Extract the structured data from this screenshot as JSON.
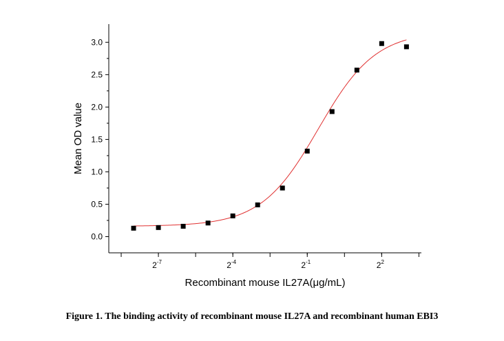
{
  "caption": "Figure 1. The binding activity of recombinant mouse IL27A and recombinant human EBI3",
  "chart_data": {
    "type": "scatter",
    "xlabel": "Recombinant mouse IL27A(μg/mL)",
    "ylabel": "Mean OD value",
    "x_scale": "log2",
    "x_ticks": [
      {
        "base": "2",
        "exp": "-7",
        "value": -7
      },
      {
        "base": "2",
        "exp": "-4",
        "value": -4
      },
      {
        "base": "2",
        "exp": "-1",
        "value": -1
      },
      {
        "base": "2",
        "exp": "2",
        "value": 2
      }
    ],
    "xlim_log2": [
      -9,
      3.6
    ],
    "ylim": [
      -0.25,
      3.28
    ],
    "y_ticks": [
      "0.0",
      "0.5",
      "1.0",
      "1.5",
      "2.0",
      "2.5",
      "3.0"
    ],
    "y_tick_values": [
      0.0,
      0.5,
      1.0,
      1.5,
      2.0,
      2.5,
      3.0
    ],
    "series": [
      {
        "marker": "square",
        "color": "#000000",
        "x_log2": [
          -8,
          -7,
          -6,
          -5,
          -4,
          -3,
          -2,
          -1,
          0,
          1,
          2,
          3
        ],
        "y": [
          0.13,
          0.14,
          0.16,
          0.21,
          0.32,
          0.49,
          0.75,
          1.32,
          1.93,
          2.57,
          2.98,
          2.93
        ]
      }
    ],
    "fit": {
      "type": "4PL",
      "color": "#e03030",
      "bottom": 0.16,
      "top": 3.17,
      "ec50_log2": -0.55,
      "hill": 1.25
    },
    "grid": false
  }
}
